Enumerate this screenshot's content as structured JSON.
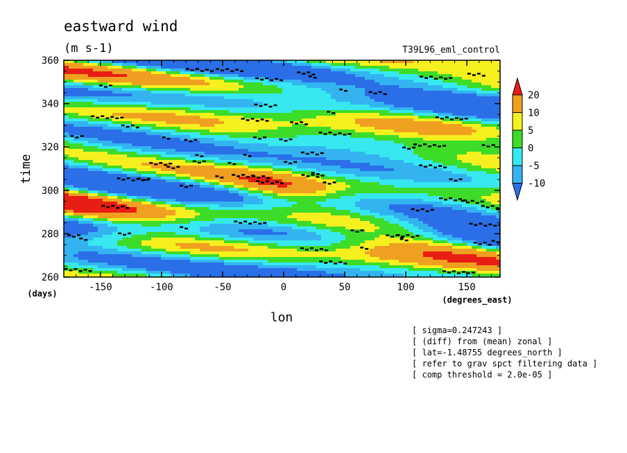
{
  "chart_data": {
    "type": "heatmap",
    "title": "eastward wind",
    "units": "(m s-1)",
    "dataset_label": "T39L96_eml_control",
    "xlabel": "lon",
    "xunits": "(degrees_east)",
    "ylabel": "time",
    "yunits": "(days)",
    "xlim": [
      -180,
      177.2
    ],
    "ylim": [
      260,
      360
    ],
    "xticks": [
      -150,
      -100,
      -50,
      0,
      50,
      100,
      150
    ],
    "xtick_labels": [
      "-150",
      "-100",
      "-50",
      "0",
      "50",
      "100",
      "150"
    ],
    "yticks": [
      260,
      280,
      300,
      320,
      340,
      360
    ],
    "ytick_labels": [
      "260",
      "280",
      "300",
      "320",
      "340",
      "360"
    ],
    "colorbar": {
      "levels": [
        -10,
        -5,
        0,
        5,
        10,
        20
      ],
      "labels": [
        "20",
        "10",
        "5",
        "0",
        "-5",
        "-10"
      ],
      "colors": [
        "#2a6fe8",
        "#33b4f0",
        "#37e8f0",
        "#3ddc28",
        "#f5f01e",
        "#f0a020",
        "#e81e14"
      ],
      "extend": "both"
    },
    "notes": [
      "[ sigma=0.247243 ]",
      "[ (diff) from (mean) zonal ]",
      "[ lat=-1.48755 degrees_north ]",
      "[ refer to grav spct filtering data ]",
      "[ comp threshold = 2.0e-05 ]"
    ]
  }
}
